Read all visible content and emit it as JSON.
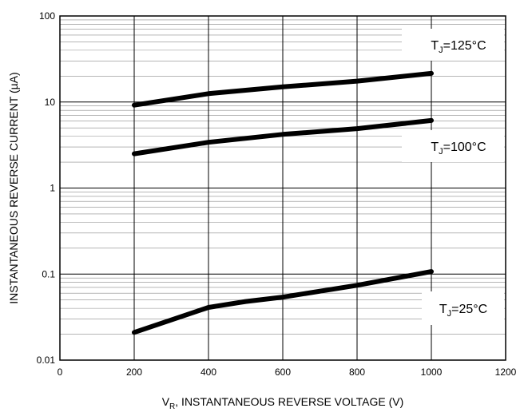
{
  "chart_data": {
    "type": "line",
    "title": "",
    "xlabel": "V_R, INSTANTANEOUS REVERSE VOLTAGE (V)",
    "xlabel_main": "V",
    "xlabel_sub": "R",
    "xlabel_rest": ", INSTANTANEOUS REVERSE VOLTAGE (V)",
    "ylabel": "INSTANTANEOUS REVERSE CURRENT (µA)",
    "x_scale": "linear",
    "y_scale": "log",
    "xlim": [
      0,
      1200
    ],
    "ylim": [
      0.01,
      100
    ],
    "x_ticks": [
      0,
      200,
      400,
      600,
      800,
      1000,
      1200
    ],
    "x_tick_labels": [
      "0",
      "200",
      "400",
      "600",
      "800",
      "1000",
      "1200"
    ],
    "y_ticks": [
      0.01,
      0.1,
      1,
      10,
      100
    ],
    "y_tick_labels": [
      "0.01",
      "0.1",
      "1",
      "10",
      "100"
    ],
    "grid": true,
    "line_color": "#000000",
    "series": [
      {
        "name": "TJ=125°C",
        "label_main": "T",
        "label_sub": "J",
        "label_rest": "=125°C",
        "x": [
          200,
          400,
          600,
          800,
          1000
        ],
        "y": [
          9.2,
          12.5,
          15,
          17.5,
          21.5
        ]
      },
      {
        "name": "TJ=100°C",
        "label_main": "T",
        "label_sub": "J",
        "label_rest": "=100°C",
        "x": [
          200,
          400,
          600,
          800,
          1000
        ],
        "y": [
          2.5,
          3.4,
          4.2,
          4.9,
          6.1
        ]
      },
      {
        "name": "TJ=25°C",
        "label_main": "T",
        "label_sub": "J",
        "label_rest": "=25°C",
        "x": [
          200,
          400,
          500,
          600,
          800,
          1000
        ],
        "y": [
          0.021,
          0.041,
          0.048,
          0.054,
          0.074,
          0.107
        ]
      }
    ]
  }
}
